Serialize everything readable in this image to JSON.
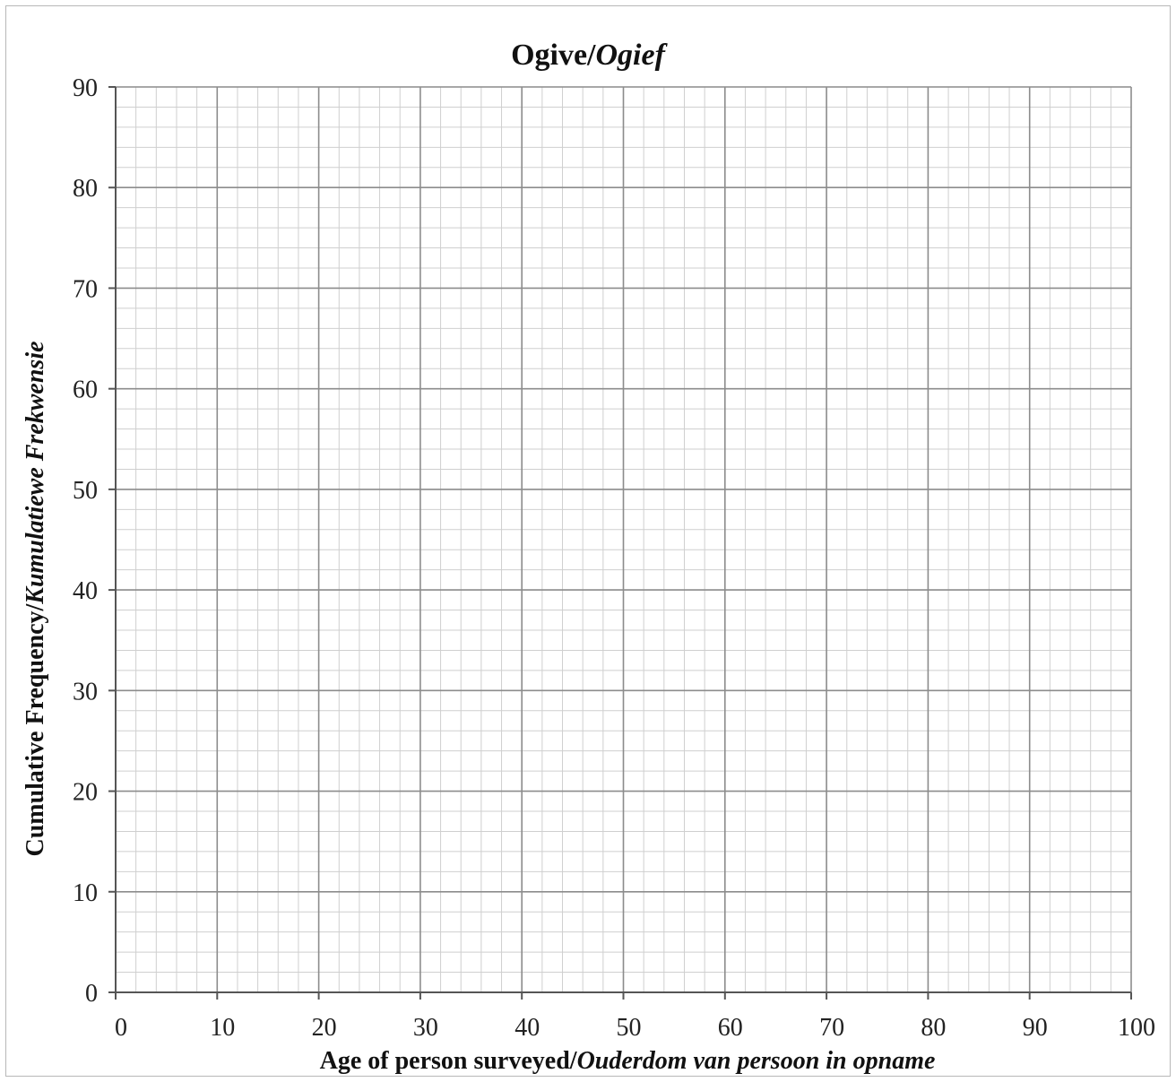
{
  "chart_data": {
    "type": "line",
    "title": {
      "main": "Ogive/",
      "italic": "Ogief"
    },
    "xlabel": {
      "main": "Age of person surveyed/",
      "italic": "Ouderdom  van persoon in opname"
    },
    "ylabel": {
      "main": "Cumulative  Frequency/",
      "italic": "Kumulatiewe  Frekwensie"
    },
    "xlim": [
      0,
      100
    ],
    "ylim": [
      0,
      90
    ],
    "x_major_step": 10,
    "y_major_step": 10,
    "x_minor_step": 2,
    "y_minor_step": 2,
    "x_ticks": [
      "0",
      "10",
      "20",
      "30",
      "40",
      "50",
      "60",
      "70",
      "80",
      "90",
      "100"
    ],
    "y_ticks": [
      "0",
      "10",
      "20",
      "30",
      "40",
      "50",
      "60",
      "70",
      "80",
      "90"
    ],
    "grid": true,
    "series": [],
    "colors": {
      "major_grid": "#8c8c8c",
      "minor_grid": "#cfcfcf",
      "axis": "#555555"
    }
  }
}
